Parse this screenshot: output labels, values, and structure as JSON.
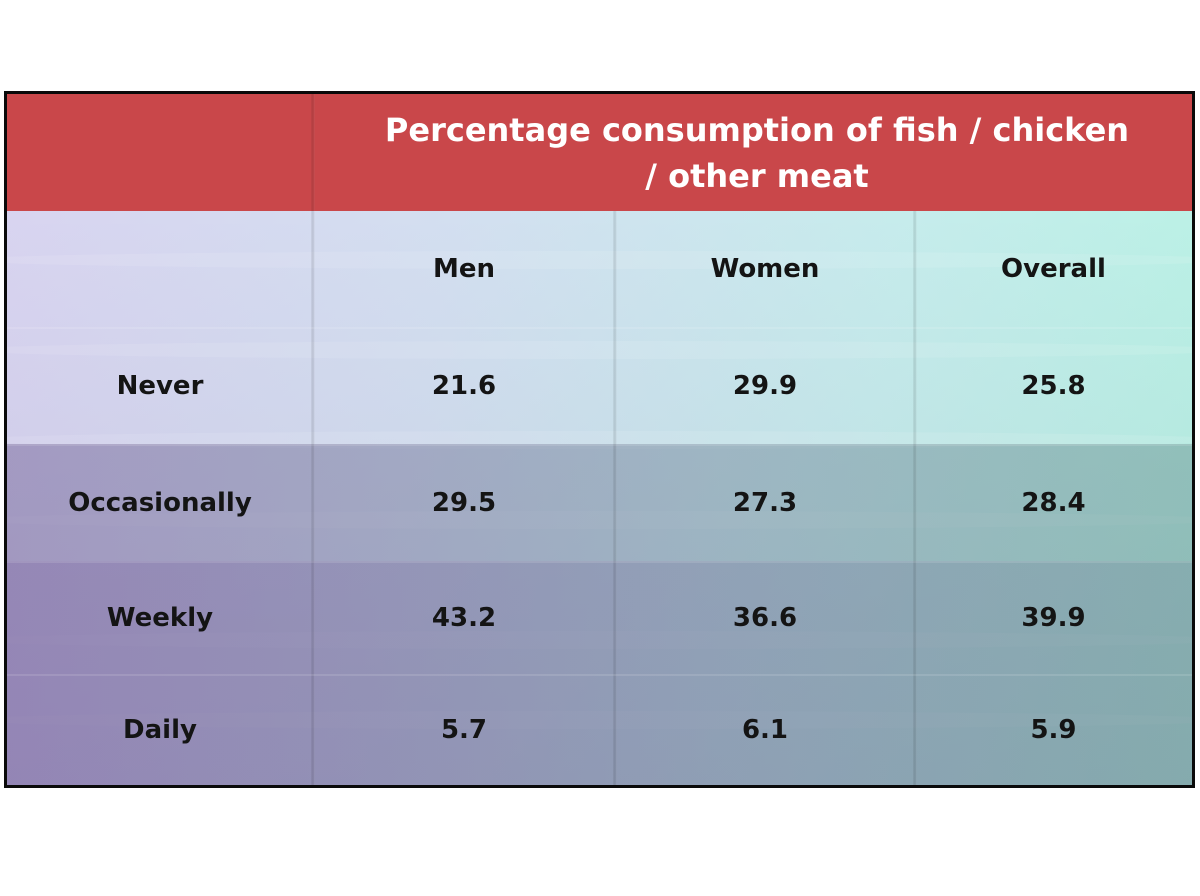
{
  "chart_data": {
    "type": "table",
    "title": "Percentage consumption of fish / chicken / other meat",
    "columns": [
      "Men",
      "Women",
      "Overall"
    ],
    "rows": [
      {
        "label": "Never",
        "values": [
          "21.6",
          "29.9",
          "25.8"
        ]
      },
      {
        "label": "Occasionally",
        "values": [
          "29.5",
          "27.3",
          "28.4"
        ]
      },
      {
        "label": "Weekly",
        "values": [
          "43.2",
          "36.6",
          "39.9"
        ]
      },
      {
        "label": "Daily",
        "values": [
          "5.7",
          "6.1",
          "5.9"
        ]
      }
    ]
  },
  "colors": {
    "header": "#c9474a",
    "border": "#0a0a0a",
    "text": "#141414"
  }
}
